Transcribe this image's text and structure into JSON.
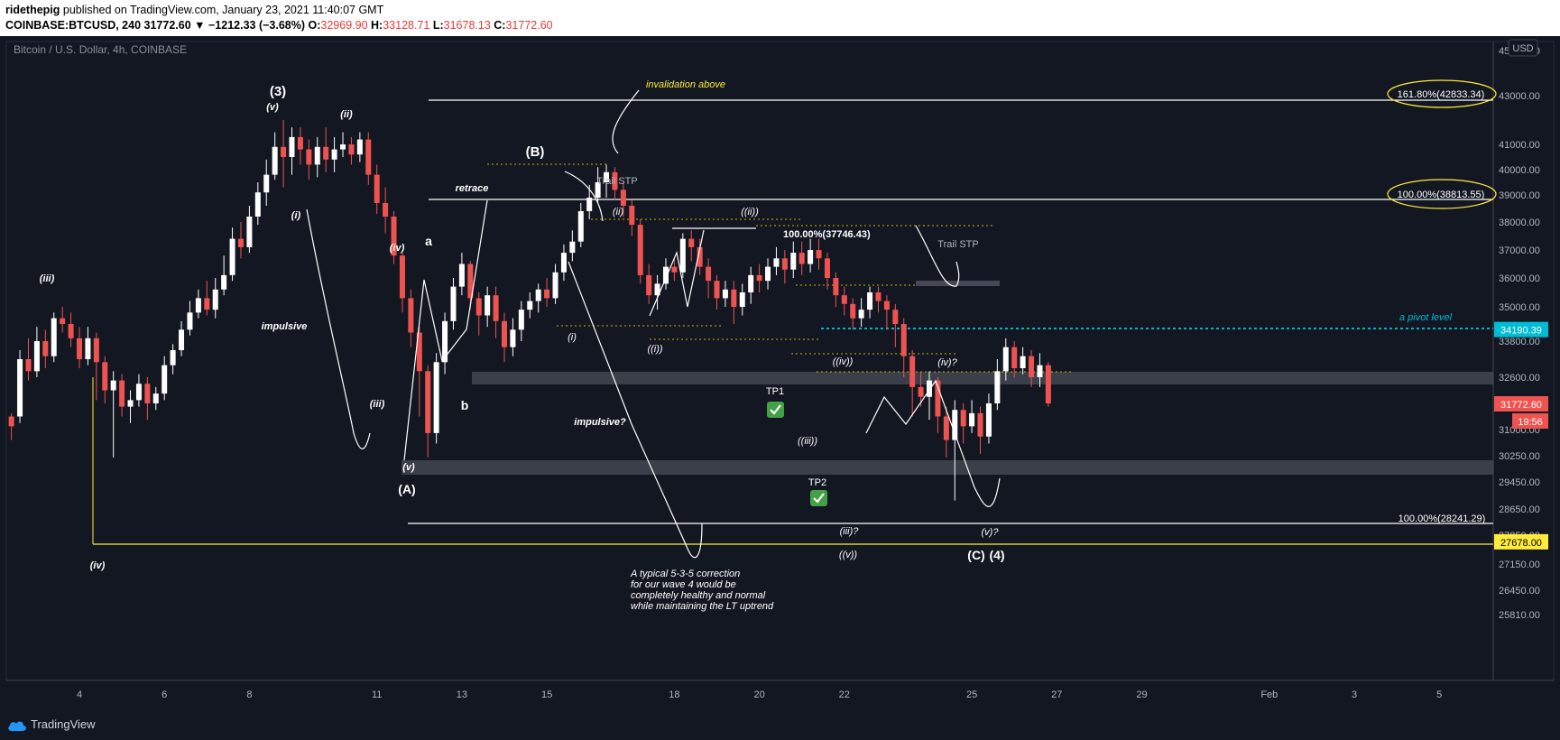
{
  "header": {
    "author": "ridethepig",
    "published": "published on TradingView.com, January 23, 2021 11:40:07 GMT",
    "symbol": "COINBASE:BTCUSD, 240",
    "last": "31772.60",
    "change": "▼ −1212.33 (−3.68%)",
    "open_label": "O:",
    "open": "32969.90",
    "high_label": "H:",
    "high": "33128.71",
    "low_label": "L:",
    "low": "31678.13",
    "close_label": "C:",
    "close": "31772.60"
  },
  "legend": "Bitcoin / U.S. Dollar, 4h, COINBASE",
  "currency_button": "USD",
  "footer": {
    "brand": "TradingView"
  },
  "colors": {
    "up": "#ffffff",
    "down": "#ef5350",
    "bg": "#131722",
    "yellow": "#ffeb3b",
    "cyan": "#00e5ff"
  },
  "chart_data": {
    "type": "candlestick",
    "x_ticks": [
      "4",
      "6",
      "8",
      "11",
      "13",
      "15",
      "18",
      "20",
      "22",
      "25",
      "27",
      "29",
      "Feb",
      "3",
      "5"
    ],
    "x_tick_days": [
      4,
      6,
      8,
      11,
      13,
      15,
      18,
      20,
      22,
      25,
      27,
      29,
      32,
      34,
      36
    ],
    "y_ticks": [
      "43000.00",
      "41000.00",
      "40000.00",
      "39000.00",
      "38000.00",
      "37000.00",
      "36000.00",
      "35000.00",
      "33800.00",
      "32600.00",
      "31000.00",
      "30250.00",
      "29450.00",
      "28650.00",
      "27850.00",
      "27150.00",
      "26450.00",
      "25810.00"
    ],
    "y_ticks_partial": [
      "45000.00"
    ],
    "price_labels": [
      {
        "text": "34190.39",
        "color": "#00bcd4",
        "value": 34190.39
      },
      {
        "text": "31772.60",
        "color": "#ef5350",
        "value": 31772.6
      },
      {
        "text": "19:56",
        "color": "#ef5350",
        "value": 31500
      },
      {
        "text": "27678.00",
        "color": "#ffeb3b",
        "value": 27678
      }
    ],
    "fib_labels": [
      {
        "text": "161.80%(42833.34)",
        "circled": true
      },
      {
        "text": "100.00%(38813.55)",
        "circled": true
      },
      {
        "text": "100.00%(37746.43)",
        "circled": false
      },
      {
        "text": "100.00%(28241.29)",
        "circled": false
      }
    ],
    "wave_labels": [
      "(3)",
      "(v)",
      "(ii)",
      "(i)",
      "(iii)",
      "impulsive",
      "(iv)",
      "(iii)",
      "(v)",
      "(A)",
      "a",
      "b",
      "retrace",
      "(B)",
      "Trail STP",
      "(ii)",
      "((ii))",
      "(i)",
      "((i))",
      "impulsive?",
      "Trail STP",
      "((iv))",
      "(iv)?",
      "((iii))",
      "TP1",
      "TP2",
      "(iii)?",
      "((v))",
      "(v)?",
      "(C)",
      "(4)",
      "(iv)"
    ],
    "annotations": [
      "invalidation above",
      "a pivot level",
      "A typical 5-3-5 correction",
      "for our wave 4 would be",
      "completely healthy and normal",
      "while maintaining the LT uptrend"
    ],
    "candles_ohlc": [
      [
        2.4,
        31400,
        31100,
        31500,
        30700
      ],
      [
        2.6,
        31400,
        33200,
        33500,
        31200
      ],
      [
        2.8,
        33200,
        32800,
        33900,
        32500
      ],
      [
        3.0,
        32800,
        33800,
        34300,
        32600
      ],
      [
        3.2,
        33800,
        33300,
        34200,
        32900
      ],
      [
        3.4,
        33300,
        34600,
        34800,
        33100
      ],
      [
        3.6,
        34600,
        34400,
        35000,
        34100
      ],
      [
        3.8,
        34400,
        33900,
        34800,
        33600
      ],
      [
        4.0,
        33900,
        33200,
        34300,
        32900
      ],
      [
        4.2,
        33200,
        33900,
        34300,
        33000
      ],
      [
        4.4,
        33900,
        33100,
        34100,
        31900
      ],
      [
        4.6,
        33100,
        32200,
        33300,
        31800
      ],
      [
        4.8,
        32200,
        32500,
        32800,
        30200
      ],
      [
        5.0,
        32500,
        31700,
        32700,
        31400
      ],
      [
        5.2,
        31700,
        31900,
        32200,
        31200
      ],
      [
        5.4,
        31900,
        32400,
        32700,
        31700
      ],
      [
        5.6,
        32400,
        31800,
        32600,
        31300
      ],
      [
        5.8,
        31800,
        32100,
        32300,
        31600
      ],
      [
        6.0,
        32100,
        33000,
        33300,
        31900
      ],
      [
        6.2,
        33000,
        33500,
        33700,
        32700
      ],
      [
        6.4,
        33500,
        34200,
        34500,
        33300
      ],
      [
        6.6,
        34200,
        34800,
        35200,
        34000
      ],
      [
        6.8,
        34800,
        35300,
        35600,
        34600
      ],
      [
        7.0,
        35300,
        34900,
        35900,
        34700
      ],
      [
        7.2,
        34900,
        35600,
        36000,
        34600
      ],
      [
        7.4,
        35600,
        36100,
        36800,
        35400
      ],
      [
        7.6,
        36100,
        37400,
        37800,
        35900
      ],
      [
        7.8,
        37400,
        37100,
        38000,
        36700
      ],
      [
        8.0,
        37100,
        38200,
        38600,
        36900
      ],
      [
        8.2,
        38200,
        39100,
        39500,
        37900
      ],
      [
        8.4,
        39100,
        39800,
        40400,
        38600
      ],
      [
        8.6,
        39800,
        40900,
        41500,
        39600
      ],
      [
        8.8,
        40900,
        40500,
        42000,
        39300
      ],
      [
        9.0,
        40500,
        41300,
        41700,
        39800
      ],
      [
        9.2,
        41300,
        40800,
        41700,
        40200
      ],
      [
        9.4,
        40800,
        40200,
        41200,
        39600
      ],
      [
        9.6,
        40200,
        40900,
        41300,
        39700
      ],
      [
        9.8,
        40900,
        40400,
        41700,
        39900
      ],
      [
        10.0,
        40400,
        40800,
        41300,
        39900
      ],
      [
        10.2,
        40800,
        41000,
        41500,
        40500
      ],
      [
        10.4,
        41000,
        40600,
        41300,
        40200
      ],
      [
        10.6,
        40600,
        41200,
        41500,
        40300
      ],
      [
        10.8,
        41200,
        39800,
        41500,
        39400
      ],
      [
        11.0,
        39800,
        38700,
        40200,
        38300
      ],
      [
        11.2,
        38700,
        38200,
        39300,
        37600
      ],
      [
        11.4,
        38200,
        36800,
        38400,
        36500
      ],
      [
        11.6,
        36800,
        35300,
        36900,
        34800
      ],
      [
        11.8,
        35300,
        34100,
        35600,
        33600
      ],
      [
        12.0,
        34100,
        32800,
        34300,
        31400
      ],
      [
        12.2,
        32800,
        30900,
        33000,
        30200
      ],
      [
        12.4,
        30900,
        33100,
        33400,
        30600
      ],
      [
        12.6,
        33100,
        34500,
        34800,
        32700
      ],
      [
        12.8,
        34500,
        35700,
        36000,
        34200
      ],
      [
        13.0,
        35700,
        36500,
        36900,
        35400
      ],
      [
        13.2,
        36500,
        35300,
        36600,
        34900
      ],
      [
        13.4,
        35300,
        34700,
        35500,
        34000
      ],
      [
        13.6,
        34700,
        35400,
        35700,
        34300
      ],
      [
        13.8,
        35400,
        34500,
        35700,
        33900
      ],
      [
        14.0,
        34500,
        33600,
        34800,
        33100
      ],
      [
        14.2,
        33600,
        34200,
        34600,
        33300
      ],
      [
        14.4,
        34200,
        34900,
        35200,
        33800
      ],
      [
        14.6,
        34900,
        35200,
        35500,
        34600
      ],
      [
        14.8,
        35200,
        35600,
        35800,
        34800
      ],
      [
        15.0,
        35600,
        35300,
        36000,
        35000
      ],
      [
        15.2,
        35300,
        36200,
        36500,
        35100
      ],
      [
        15.4,
        36200,
        36900,
        37200,
        35900
      ],
      [
        15.6,
        36900,
        37300,
        37700,
        36600
      ],
      [
        15.8,
        37300,
        38400,
        38700,
        37100
      ],
      [
        16.0,
        38400,
        38900,
        39400,
        38100
      ],
      [
        16.2,
        38900,
        39500,
        40100,
        38700
      ],
      [
        16.4,
        39500,
        39900,
        40200,
        38900
      ],
      [
        16.6,
        39900,
        39200,
        40100,
        38800
      ],
      [
        16.8,
        39200,
        38600,
        39500,
        38200
      ],
      [
        17.0,
        38600,
        37900,
        38800,
        37500
      ],
      [
        17.2,
        37900,
        36100,
        38100,
        35800
      ],
      [
        17.4,
        36100,
        35400,
        36500,
        35100
      ],
      [
        17.6,
        35400,
        35800,
        36100,
        34900
      ],
      [
        17.8,
        35800,
        36400,
        36700,
        35600
      ],
      [
        18.0,
        36400,
        36200,
        36700,
        35900
      ],
      [
        18.2,
        36200,
        37400,
        37600,
        36000
      ],
      [
        18.4,
        37400,
        37100,
        37700,
        36600
      ],
      [
        18.6,
        37100,
        36400,
        37400,
        36100
      ],
      [
        18.8,
        36400,
        35900,
        36700,
        35300
      ],
      [
        19.0,
        35900,
        35300,
        36100,
        34900
      ],
      [
        19.2,
        35300,
        35600,
        35900,
        35000
      ],
      [
        19.4,
        35600,
        35000,
        35900,
        34400
      ],
      [
        19.6,
        35000,
        35500,
        35800,
        34700
      ],
      [
        19.8,
        35500,
        36100,
        36400,
        35100
      ],
      [
        20.0,
        36100,
        35900,
        36500,
        35500
      ],
      [
        20.2,
        35900,
        36400,
        36700,
        35600
      ],
      [
        20.4,
        36400,
        36700,
        37100,
        36100
      ],
      [
        20.6,
        36700,
        36300,
        37000,
        35800
      ],
      [
        20.8,
        36300,
        36900,
        37300,
        36000
      ],
      [
        21.0,
        36900,
        36500,
        37300,
        36100
      ],
      [
        21.2,
        36500,
        37000,
        37400,
        36200
      ],
      [
        21.4,
        37000,
        36700,
        37400,
        36300
      ],
      [
        21.6,
        36700,
        36000,
        36900,
        35600
      ],
      [
        21.8,
        36000,
        35400,
        36200,
        35000
      ],
      [
        22.0,
        35400,
        35100,
        35700,
        34700
      ],
      [
        22.2,
        35100,
        34600,
        35300,
        34200
      ],
      [
        22.4,
        34600,
        34900,
        35300,
        34300
      ],
      [
        22.6,
        34900,
        35500,
        35700,
        34600
      ],
      [
        22.8,
        35500,
        35200,
        35700,
        34800
      ],
      [
        23.0,
        35200,
        34900,
        35400,
        34200
      ],
      [
        23.2,
        34900,
        34400,
        35100,
        33600
      ],
      [
        23.4,
        34400,
        33300,
        34600,
        32600
      ],
      [
        23.6,
        33300,
        32300,
        33500,
        31400
      ],
      [
        23.8,
        32300,
        32000,
        32800,
        31700
      ],
      [
        24.0,
        32000,
        32500,
        32800,
        31300
      ],
      [
        24.2,
        32500,
        31400,
        32600,
        30900
      ],
      [
        24.4,
        31400,
        30700,
        31700,
        30200
      ],
      [
        24.6,
        30700,
        31600,
        31900,
        28900
      ],
      [
        24.8,
        31600,
        31100,
        31800,
        30600
      ],
      [
        25.0,
        31100,
        31500,
        31900,
        30900
      ],
      [
        25.2,
        31500,
        30800,
        31700,
        30300
      ],
      [
        25.4,
        30800,
        31800,
        32100,
        30600
      ],
      [
        25.6,
        31800,
        32800,
        33200,
        31600
      ],
      [
        25.8,
        32800,
        33600,
        33900,
        32500
      ],
      [
        26.0,
        33600,
        32900,
        33800,
        32600
      ],
      [
        26.2,
        32900,
        33300,
        33600,
        32700
      ],
      [
        26.4,
        33300,
        32600,
        33500,
        32300
      ],
      [
        26.6,
        32600,
        33000,
        33400,
        32300
      ],
      [
        26.8,
        33000,
        31800,
        33100,
        31700
      ]
    ]
  }
}
